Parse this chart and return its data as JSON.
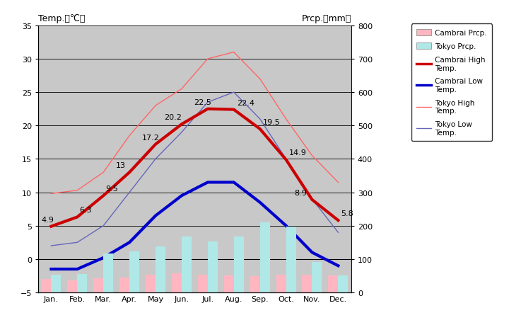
{
  "months": [
    "Jan.",
    "Feb.",
    "Mar.",
    "Apr.",
    "May",
    "Jun.",
    "Jul.",
    "Aug.",
    "Sep.",
    "Oct.",
    "Nov.",
    "Dec."
  ],
  "cambrai_high": [
    4.9,
    6.3,
    9.5,
    13.0,
    17.2,
    20.2,
    22.5,
    22.4,
    19.5,
    14.9,
    8.9,
    5.8
  ],
  "cambrai_low": [
    -1.5,
    -1.5,
    0.2,
    2.5,
    6.5,
    9.5,
    11.5,
    11.5,
    8.5,
    5.0,
    1.0,
    -1.0
  ],
  "tokyo_high": [
    9.8,
    10.3,
    13.0,
    18.5,
    23.0,
    25.5,
    30.0,
    31.0,
    27.0,
    21.0,
    15.5,
    11.5
  ],
  "tokyo_low": [
    2.0,
    2.5,
    5.0,
    10.0,
    15.0,
    19.0,
    23.5,
    25.0,
    21.0,
    15.0,
    9.0,
    4.0
  ],
  "tokyo_prcp_mm": [
    52.0,
    56.0,
    117.0,
    124.0,
    137.0,
    167.0,
    153.0,
    168.0,
    210.0,
    197.0,
    92.0,
    51.0
  ],
  "cambrai_prcp_mm": [
    40.0,
    35.0,
    42.0,
    44.0,
    52.0,
    57.0,
    52.0,
    51.0,
    48.0,
    52.0,
    52.0,
    50.0
  ],
  "temp_ylim": [
    -5,
    35
  ],
  "prcp_ylim": [
    0,
    800
  ],
  "background_color": "#c8c8c8",
  "cambrai_high_color": "#cc0000",
  "cambrai_low_color": "#0000cc",
  "tokyo_high_color": "#ff6666",
  "tokyo_low_color": "#6666bb",
  "cambrai_prcp_color": "#ffb6c1",
  "tokyo_prcp_color": "#b0e8e8",
  "annot_values": [
    4.9,
    6.3,
    9.5,
    13,
    17.2,
    20.2,
    22.5,
    22.4,
    19.5,
    14.9,
    8.9,
    5.8
  ],
  "annot_offsets_x": [
    -10,
    2,
    2,
    -14,
    -14,
    -18,
    -14,
    3,
    3,
    3,
    -18,
    3
  ],
  "annot_offsets_y": [
    5,
    5,
    5,
    5,
    5,
    5,
    5,
    5,
    5,
    5,
    5,
    5
  ]
}
